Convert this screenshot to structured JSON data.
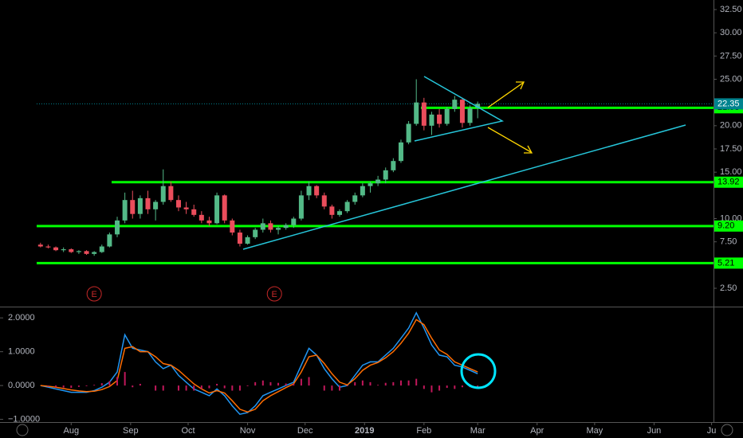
{
  "chart_data": [
    {
      "type": "candlestick",
      "x": [
        15,
        19,
        23,
        27,
        31,
        35,
        39,
        43,
        47,
        51,
        55,
        59,
        63,
        67,
        71,
        75,
        79,
        83,
        87,
        91,
        95,
        99,
        103,
        107,
        111,
        115,
        119,
        123,
        127,
        131,
        135,
        139,
        143,
        147,
        151,
        155,
        159,
        163,
        167,
        171,
        175,
        179,
        183,
        187,
        191,
        195,
        199,
        203,
        207,
        211,
        215,
        219,
        223,
        227,
        231,
        235,
        239,
        243
      ],
      "open": [
        7.2,
        7.0,
        6.9,
        6.6,
        6.7,
        6.4,
        6.5,
        6.2,
        6.4,
        7.0,
        8.3,
        9.8,
        12.0,
        10.5,
        12.2,
        11.0,
        11.8,
        13.5,
        12.0,
        11.2,
        11.0,
        10.4,
        9.8,
        9.5,
        12.5,
        9.8,
        8.5,
        7.3,
        8.0,
        8.8,
        9.5,
        8.8,
        9.0,
        9.3,
        10.0,
        12.5,
        13.5,
        12.5,
        11.3,
        10.4,
        10.8,
        11.8,
        12.5,
        13.5,
        13.8,
        14.2,
        15.2,
        16.2,
        18.2,
        20.2,
        22.5,
        20.0,
        21.2,
        20.2,
        21.8,
        22.8,
        20.3,
        21.9
      ],
      "high": [
        7.4,
        7.2,
        7.0,
        6.9,
        6.8,
        6.6,
        6.6,
        6.5,
        7.2,
        8.5,
        10.2,
        12.8,
        13.0,
        12.5,
        13.0,
        12.0,
        15.3,
        14.0,
        12.5,
        11.8,
        11.5,
        10.8,
        10.2,
        12.8,
        12.6,
        10.0,
        8.8,
        8.2,
        9.0,
        10.0,
        9.8,
        9.2,
        9.5,
        10.2,
        13.0,
        14.0,
        13.6,
        12.8,
        11.5,
        11.0,
        12.0,
        12.8,
        13.8,
        14.0,
        14.6,
        15.5,
        16.5,
        18.5,
        20.5,
        25.0,
        23.0,
        21.5,
        21.8,
        22.0,
        23.2,
        23.0,
        22.2,
        22.6
      ],
      "low": [
        6.9,
        6.8,
        6.5,
        6.4,
        6.3,
        6.2,
        6.1,
        6.0,
        6.3,
        6.9,
        8.0,
        9.5,
        10.0,
        10.0,
        10.5,
        9.8,
        11.5,
        11.8,
        10.8,
        10.5,
        10.2,
        9.5,
        9.2,
        9.4,
        9.5,
        8.2,
        7.0,
        7.2,
        7.8,
        8.5,
        8.5,
        8.3,
        8.8,
        9.0,
        9.8,
        12.0,
        12.2,
        11.0,
        10.0,
        10.2,
        10.6,
        11.5,
        12.3,
        12.8,
        13.5,
        13.8,
        15.0,
        16.0,
        18.0,
        20.0,
        19.5,
        19.0,
        19.8,
        20.0,
        21.5,
        19.8,
        20.0,
        20.8
      ],
      "close": [
        7.0,
        6.9,
        6.6,
        6.7,
        6.4,
        6.5,
        6.2,
        6.4,
        7.0,
        8.3,
        9.8,
        12.0,
        10.5,
        12.2,
        11.0,
        11.8,
        13.5,
        12.0,
        11.2,
        11.0,
        10.4,
        9.8,
        9.5,
        12.5,
        9.8,
        8.5,
        7.3,
        8.0,
        8.8,
        9.5,
        8.8,
        9.0,
        9.3,
        10.0,
        12.5,
        13.5,
        12.5,
        11.3,
        10.4,
        10.8,
        11.8,
        12.5,
        13.5,
        13.8,
        14.2,
        15.2,
        16.2,
        18.2,
        20.2,
        22.5,
        20.0,
        21.2,
        20.2,
        21.8,
        22.8,
        20.3,
        21.9,
        22.35
      ],
      "up_color": "#53b987",
      "down_color": "#eb4d5c",
      "xlim": [
        13,
        366
      ],
      "xticks": [
        {
          "value": 31,
          "label": "Aug"
        },
        {
          "value": 62,
          "label": "Sep"
        },
        {
          "value": 92,
          "label": "Oct"
        },
        {
          "value": 123,
          "label": "Nov"
        },
        {
          "value": 153,
          "label": "Dec"
        },
        {
          "value": 184,
          "label": "2019"
        },
        {
          "value": 215,
          "label": "Feb"
        },
        {
          "value": 243,
          "label": "Mar"
        },
        {
          "value": 274,
          "label": "Apr"
        },
        {
          "value": 304,
          "label": "May"
        },
        {
          "value": 335,
          "label": "Jun"
        },
        {
          "value": 365,
          "label": "Ju"
        }
      ],
      "ylim": [
        0.7,
        33.53
      ],
      "yticks": [
        {
          "value": 32.5,
          "label": "32.50"
        },
        {
          "value": 30,
          "label": "30.00"
        },
        {
          "value": 27.5,
          "label": "27.50"
        },
        {
          "value": 25,
          "label": "25.00"
        },
        {
          "value": 20,
          "label": "20.00"
        },
        {
          "value": 17.5,
          "label": "17.50"
        },
        {
          "value": 15,
          "label": "15.00"
        },
        {
          "value": 10,
          "label": "10.00"
        },
        {
          "value": 7.5,
          "label": "7.50"
        },
        {
          "value": 2.5,
          "label": "2.50"
        }
      ],
      "levels": [
        21.93,
        13.92,
        {
          "value": 9.2,
          "label": "9.20"
        },
        5.21
      ],
      "level_color": "#00ff00",
      "last_price": 22.35,
      "last_price_color": "#00838f",
      "events": [
        {
          "x": 43,
          "label": "E"
        },
        {
          "x": 137,
          "label": "E"
        }
      ],
      "event_color": "#c62828"
    },
    {
      "type": "macd",
      "x": [
        15,
        19,
        23,
        27,
        31,
        35,
        39,
        43,
        47,
        51,
        55,
        59,
        63,
        67,
        71,
        75,
        79,
        83,
        87,
        91,
        95,
        99,
        103,
        107,
        111,
        115,
        119,
        123,
        127,
        131,
        135,
        139,
        143,
        147,
        151,
        155,
        159,
        163,
        167,
        171,
        175,
        179,
        183,
        187,
        191,
        195,
        199,
        203,
        207,
        211,
        215,
        219,
        223,
        227,
        231,
        235,
        239,
        243
      ],
      "series": [
        {
          "name": "MACD",
          "color": "#2196f3",
          "values": [
            0.0,
            -0.05,
            -0.1,
            -0.15,
            -0.2,
            -0.2,
            -0.2,
            -0.15,
            -0.05,
            0.1,
            0.4,
            1.5,
            1.1,
            1.05,
            1.0,
            0.7,
            0.5,
            0.6,
            0.3,
            0.1,
            -0.1,
            -0.2,
            -0.3,
            -0.1,
            -0.3,
            -0.6,
            -0.85,
            -0.8,
            -0.6,
            -0.3,
            -0.2,
            -0.1,
            0.0,
            0.1,
            0.6,
            1.1,
            0.9,
            0.5,
            0.2,
            -0.05,
            0.0,
            0.3,
            0.6,
            0.7,
            0.7,
            0.9,
            1.1,
            1.4,
            1.7,
            2.15,
            1.7,
            1.2,
            0.9,
            0.85,
            0.6,
            0.55,
            0.45,
            0.35
          ]
        },
        {
          "name": "Signal",
          "color": "#ff6d00",
          "values": [
            0.0,
            -0.02,
            -0.05,
            -0.09,
            -0.13,
            -0.16,
            -0.18,
            -0.17,
            -0.12,
            -0.03,
            0.15,
            1.1,
            1.15,
            1.0,
            1.0,
            0.85,
            0.65,
            0.6,
            0.45,
            0.25,
            0.05,
            -0.1,
            -0.22,
            -0.15,
            -0.22,
            -0.45,
            -0.7,
            -0.78,
            -0.7,
            -0.45,
            -0.3,
            -0.18,
            -0.06,
            0.05,
            0.4,
            0.85,
            0.9,
            0.65,
            0.35,
            0.1,
            0.02,
            0.2,
            0.45,
            0.6,
            0.68,
            0.82,
            1.0,
            1.25,
            1.55,
            1.95,
            1.8,
            1.4,
            1.05,
            0.92,
            0.7,
            0.6,
            0.5,
            0.4
          ]
        },
        {
          "name": "Histogram",
          "color": "#c2185b",
          "values": [
            0,
            -0.03,
            -0.05,
            -0.06,
            -0.07,
            -0.04,
            -0.02,
            0.02,
            0.07,
            0.13,
            0.25,
            0.4,
            -0.05,
            0.05,
            0,
            -0.15,
            -0.15,
            0,
            -0.15,
            -0.15,
            -0.15,
            -0.1,
            -0.08,
            0.05,
            -0.08,
            -0.15,
            -0.15,
            -0.02,
            0.1,
            0.15,
            0.1,
            0.08,
            0.06,
            0.05,
            0.2,
            0.25,
            0,
            -0.15,
            -0.15,
            -0.15,
            -0.02,
            0.1,
            0.15,
            0.1,
            0.02,
            0.08,
            0.1,
            0.15,
            0.15,
            0.2,
            -0.1,
            -0.2,
            -0.15,
            -0.07,
            -0.1,
            -0.05,
            -0.05,
            -0.05
          ]
        }
      ],
      "xlim": [
        13,
        366
      ],
      "ylim": [
        -1.08,
        2.31
      ],
      "yticks": [
        {
          "value": 2,
          "label": "2.0000"
        },
        {
          "value": 1,
          "label": "1.0000"
        },
        {
          "value": 0,
          "label": "0.0000"
        },
        {
          "value": -1,
          "label": "−1.0000"
        }
      ]
    }
  ]
}
